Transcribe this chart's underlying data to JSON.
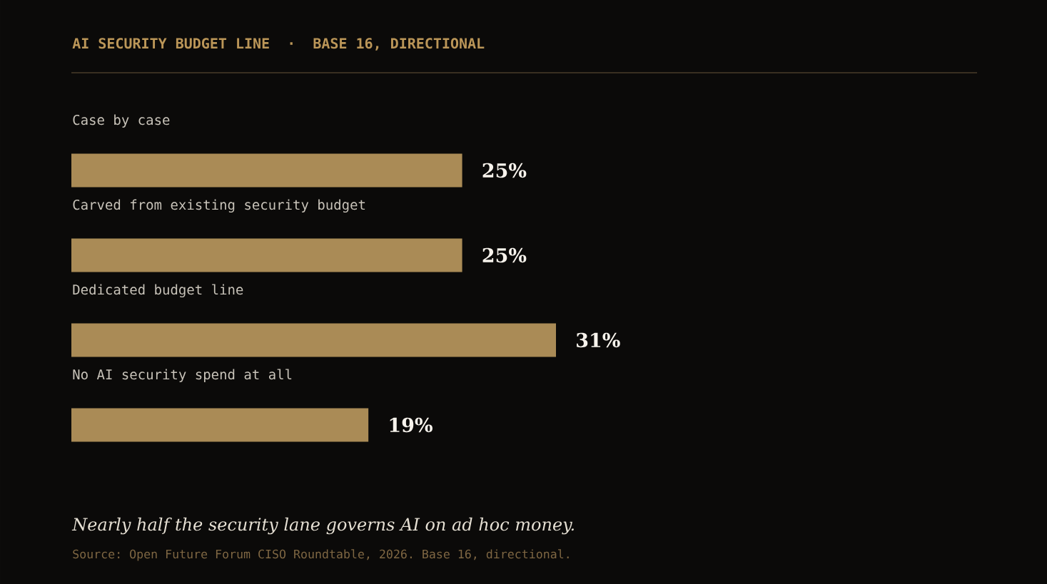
{
  "chart_data": {
    "type": "bar",
    "orientation": "horizontal",
    "title": "AI SECURITY BUDGET LINE  ·  BASE 16, DIRECTIONAL",
    "categories": [
      "Case by case",
      "Carved from existing security budget",
      "Dedicated budget line",
      "No AI security spend at all"
    ],
    "values": [
      25,
      25,
      31,
      19
    ],
    "value_labels": [
      "25%",
      "25%",
      "31%",
      "19%"
    ],
    "color": "#aa8b56",
    "tick_labels": "y",
    "annotations": [
      "Nearly half the security lane governs AI on ad hoc money.",
      "Source: Open Future Forum CISO Roundtable, 2026. Base 16, directional."
    ]
  }
}
